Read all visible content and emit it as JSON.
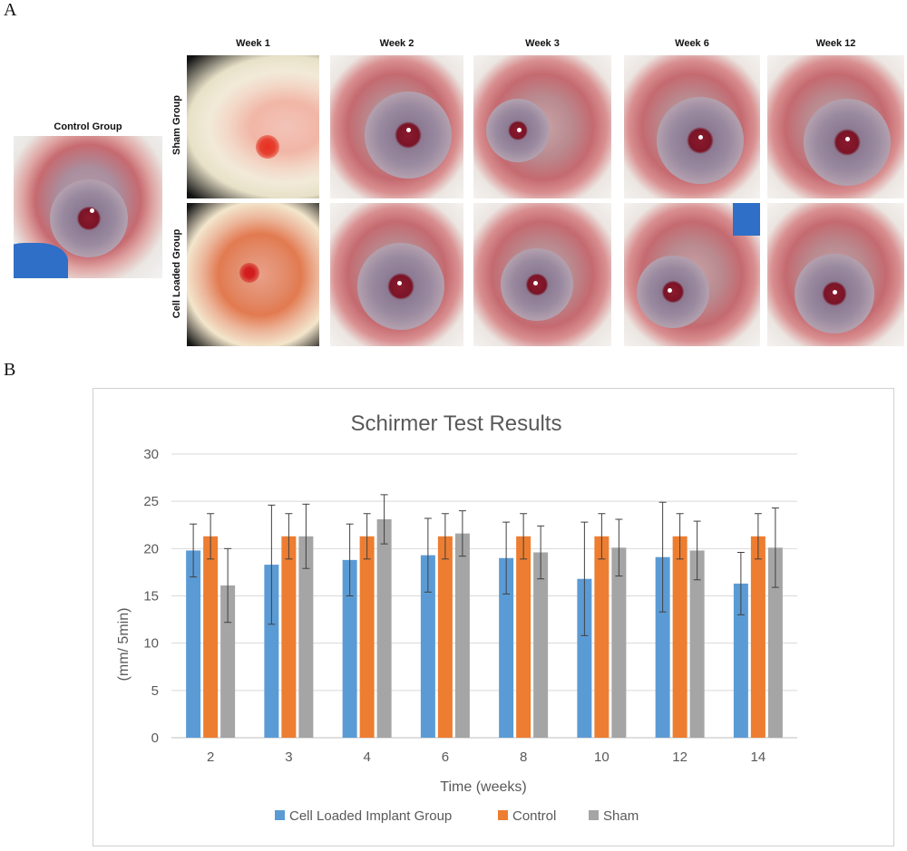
{
  "panel_a": {
    "letter": "A",
    "columns": [
      "Week 1",
      "Week 2",
      "Week 3",
      "Week 6",
      "Week 12"
    ],
    "control_label": "Control Group",
    "rows": [
      "Sham Group",
      "Cell Loaded Group"
    ]
  },
  "panel_b": {
    "letter": "B"
  },
  "chart_data": {
    "type": "bar",
    "title": "Schirmer Test Results",
    "xlabel": "Time (weeks)",
    "ylabel": "(mm/ 5min)",
    "ylim": [
      0,
      30
    ],
    "yticks": [
      "0",
      "5",
      "10",
      "15",
      "20",
      "25",
      "30"
    ],
    "categories": [
      "2",
      "3",
      "4",
      "6",
      "8",
      "10",
      "12",
      "14"
    ],
    "grid": true,
    "legend_placement": "bottom",
    "series": [
      {
        "name": "Cell Loaded Implant Group",
        "color": "#5b9bd5",
        "values": [
          19.8,
          18.3,
          18.8,
          19.3,
          19.0,
          16.8,
          19.1,
          16.3
        ],
        "error": [
          2.8,
          6.3,
          3.8,
          3.9,
          3.8,
          6.0,
          5.8,
          3.3
        ]
      },
      {
        "name": "Control",
        "color": "#ed7d31",
        "values": [
          21.3,
          21.3,
          21.3,
          21.3,
          21.3,
          21.3,
          21.3,
          21.3
        ],
        "error": [
          2.4,
          2.4,
          2.4,
          2.4,
          2.4,
          2.4,
          2.4,
          2.4
        ]
      },
      {
        "name": "Sham",
        "color": "#a5a5a5",
        "values": [
          16.1,
          21.3,
          23.1,
          21.6,
          19.6,
          20.1,
          19.8,
          20.1
        ],
        "error": [
          3.9,
          3.4,
          2.6,
          2.4,
          2.8,
          3.0,
          3.1,
          4.2
        ]
      }
    ]
  }
}
